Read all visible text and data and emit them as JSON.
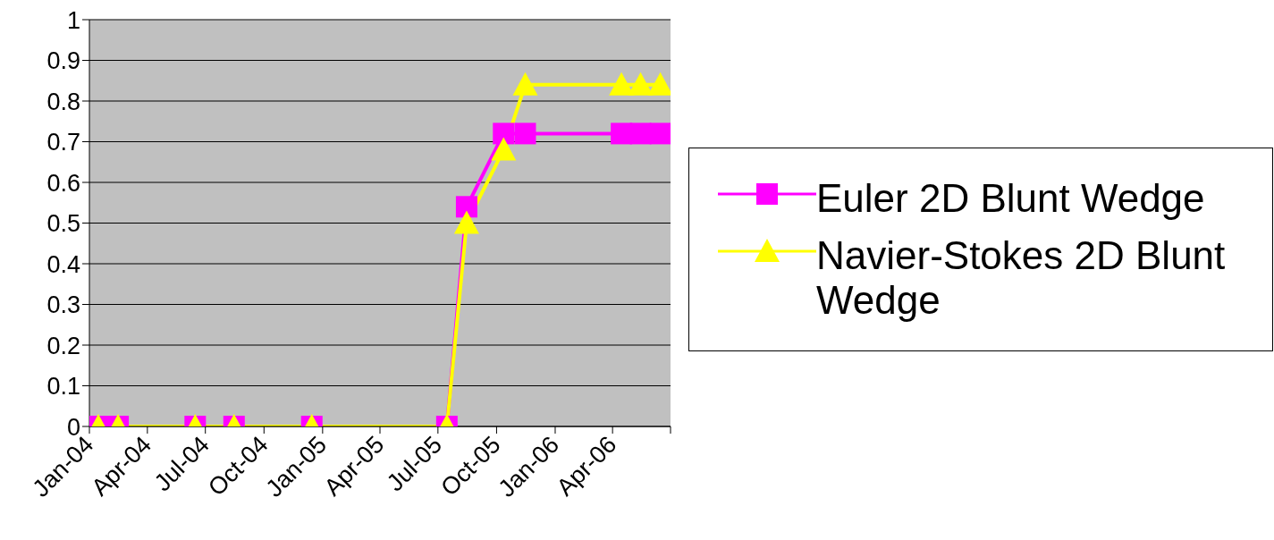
{
  "chart_data": {
    "type": "line",
    "x": [
      "2004-01-15",
      "2004-02-15",
      "2004-06-15",
      "2004-08-15",
      "2004-12-15",
      "2005-07-15",
      "2005-08-15",
      "2005-10-12",
      "2005-11-15",
      "2006-04-15",
      "2006-05-15",
      "2006-06-15"
    ],
    "series": [
      {
        "name": "Euler 2D Blunt Wedge",
        "color": "#ff00ff",
        "marker": "square",
        "values": [
          0,
          0,
          0,
          0,
          0,
          0,
          0.54,
          0.72,
          0.72,
          0.72,
          0.72,
          0.72
        ]
      },
      {
        "name": "Navier-Stokes 2D Blunt Wedge",
        "color": "#ffff00",
        "marker": "triangle",
        "values": [
          0,
          0,
          0,
          0,
          0,
          0,
          0.5,
          0.68,
          0.84,
          0.84,
          0.84,
          0.84
        ]
      }
    ],
    "xlim": [
      "2004-01-01",
      "2006-07-01"
    ],
    "xticks": [
      {
        "value": "2004-01-01",
        "label": "Jan-04"
      },
      {
        "value": "2004-04-01",
        "label": "Apr-04"
      },
      {
        "value": "2004-07-01",
        "label": "Jul-04"
      },
      {
        "value": "2004-10-01",
        "label": "Oct-04"
      },
      {
        "value": "2005-01-01",
        "label": "Jan-05"
      },
      {
        "value": "2005-04-01",
        "label": "Apr-05"
      },
      {
        "value": "2005-07-01",
        "label": "Jul-05"
      },
      {
        "value": "2005-10-01",
        "label": "Oct-05"
      },
      {
        "value": "2006-01-01",
        "label": "Jan-06"
      },
      {
        "value": "2006-04-01",
        "label": "Apr-06"
      },
      {
        "value": "2006-07-01",
        "label": null
      }
    ],
    "ylim": [
      0,
      1
    ],
    "yticks": [
      0,
      0.1,
      0.2,
      0.3,
      0.4,
      0.5,
      0.6,
      0.7,
      0.8,
      0.9,
      1
    ],
    "grid": "y",
    "legend": "right"
  }
}
